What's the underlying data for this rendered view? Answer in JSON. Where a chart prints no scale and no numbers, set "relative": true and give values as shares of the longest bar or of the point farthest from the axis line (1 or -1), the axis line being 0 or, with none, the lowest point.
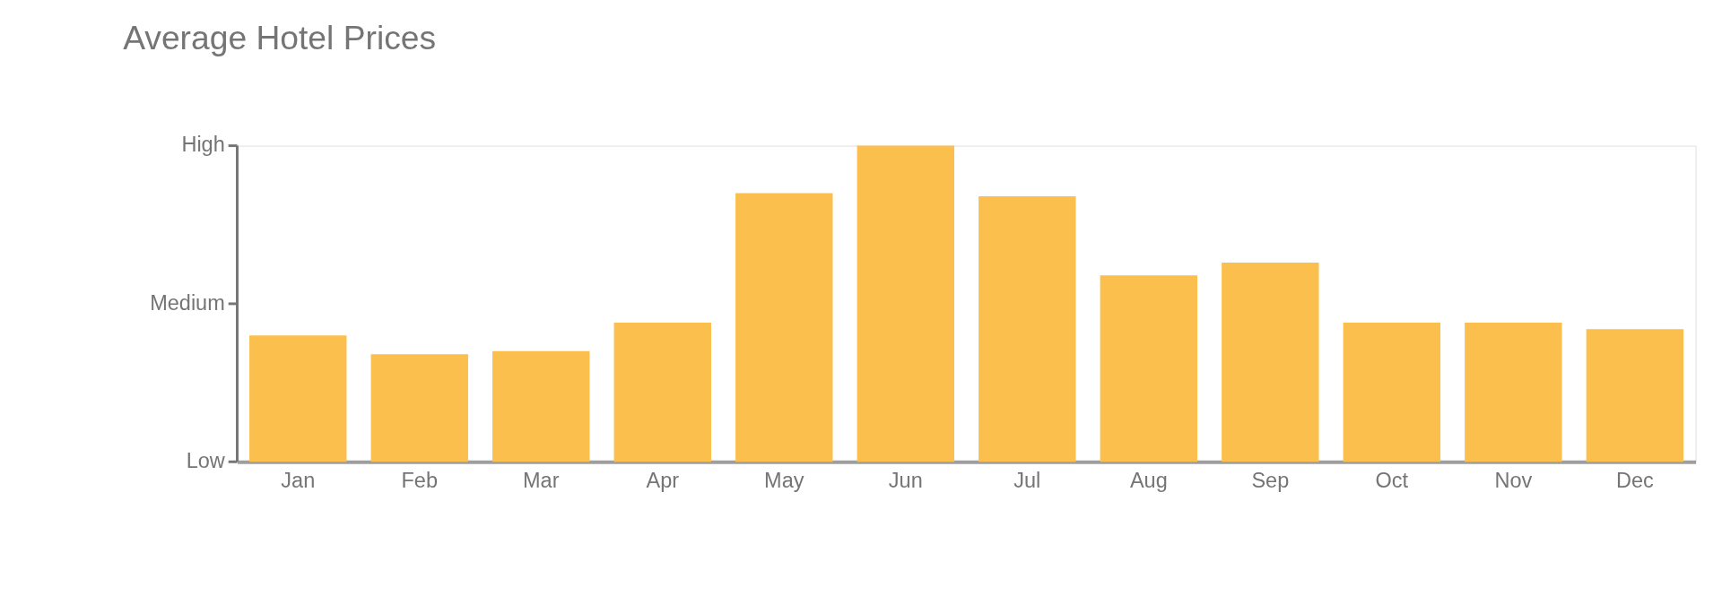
{
  "chart_data": {
    "type": "bar",
    "title": "Average Hotel Prices",
    "categories": [
      "Jan",
      "Feb",
      "Mar",
      "Apr",
      "May",
      "Jun",
      "Jul",
      "Aug",
      "Sep",
      "Oct",
      "Nov",
      "Dec"
    ],
    "values": [
      0.4,
      0.34,
      0.35,
      0.44,
      0.85,
      1.0,
      0.84,
      0.59,
      0.63,
      0.44,
      0.44,
      0.42
    ],
    "color": "#fbbf4e",
    "relative": true,
    "annotations": [
      "Low",
      "Medium",
      "High"
    ]
  }
}
